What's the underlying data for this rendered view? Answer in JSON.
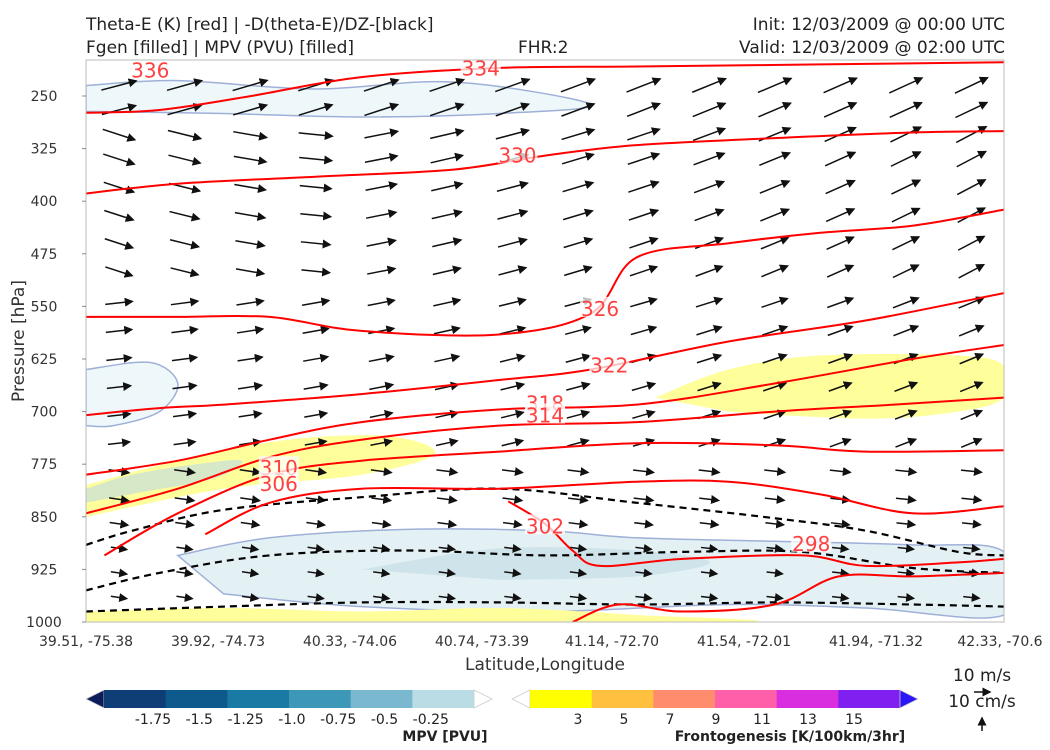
{
  "header": {
    "title_line1": "Theta-E (K) [red] | -D(theta-E)/DZ-[black]",
    "title_line2": "Fgen [filled] | MPV (PVU) [filled]",
    "fhr": "FHR:2",
    "init": "Init: 12/03/2009 @ 00:00 UTC",
    "valid": "Valid: 12/03/2009 @ 02:00 UTC"
  },
  "chart_data": {
    "type": "cross-section",
    "xlabel": "Latitude,Longitude",
    "ylabel": "Pressure [hPa]",
    "x_ticks": [
      "39.51, -75.38",
      "39.92, -74.73",
      "40.33, -74.06",
      "40.74, -73.39",
      "41.14, -72.70",
      "41.54, -72.01",
      "41.94, -71.32",
      "42.33, -70.6"
    ],
    "y_ticks": [
      250,
      325,
      400,
      475,
      550,
      625,
      700,
      775,
      850,
      925,
      1000
    ],
    "ylim": [
      1000,
      200
    ],
    "y_scale": "linear",
    "theta_e_contours": [
      {
        "label": "334",
        "color": "#ff0000",
        "points": [
          [
            0,
            274
          ],
          [
            0.08,
            270
          ],
          [
            0.18,
            250
          ],
          [
            0.3,
            223
          ],
          [
            0.45,
            210
          ],
          [
            0.6,
            208
          ],
          [
            0.8,
            205
          ],
          [
            1,
            202
          ]
        ]
      },
      {
        "label": "330",
        "color": "#ff0000",
        "points": [
          [
            0,
            389
          ],
          [
            0.1,
            375
          ],
          [
            0.25,
            365
          ],
          [
            0.4,
            355
          ],
          [
            0.5,
            335
          ],
          [
            0.6,
            320
          ],
          [
            0.75,
            310
          ],
          [
            0.9,
            302
          ],
          [
            1,
            300
          ]
        ]
      },
      {
        "label": "326",
        "color": "#ff0000",
        "points": [
          [
            0,
            565
          ],
          [
            0.1,
            565
          ],
          [
            0.2,
            565
          ],
          [
            0.3,
            585
          ],
          [
            0.45,
            590
          ],
          [
            0.55,
            560
          ],
          [
            0.6,
            480
          ],
          [
            0.7,
            460
          ],
          [
            0.8,
            445
          ],
          [
            0.9,
            435
          ],
          [
            1,
            412
          ]
        ]
      },
      {
        "label": "322",
        "color": "#ff0000",
        "points": [
          [
            0,
            705
          ],
          [
            0.08,
            695
          ],
          [
            0.15,
            690
          ],
          [
            0.3,
            675
          ],
          [
            0.45,
            655
          ],
          [
            0.55,
            640
          ],
          [
            0.7,
            600
          ],
          [
            0.85,
            570
          ],
          [
            1,
            531
          ]
        ]
      },
      {
        "label": "318",
        "color": "#ff0000",
        "points": [
          [
            0,
            790
          ],
          [
            0.1,
            770
          ],
          [
            0.2,
            740
          ],
          [
            0.3,
            715
          ],
          [
            0.45,
            697
          ],
          [
            0.6,
            690
          ],
          [
            0.75,
            660
          ],
          [
            0.9,
            625
          ],
          [
            1,
            605
          ]
        ]
      },
      {
        "label": "314",
        "color": "#ff0000",
        "points": [
          [
            0,
            845
          ],
          [
            0.1,
            810
          ],
          [
            0.2,
            765
          ],
          [
            0.3,
            740
          ],
          [
            0.45,
            720
          ],
          [
            0.6,
            715
          ],
          [
            0.75,
            700
          ],
          [
            0.88,
            690
          ],
          [
            1,
            680
          ]
        ]
      },
      {
        "label": "310",
        "color": "#ff0000",
        "points": [
          [
            0.02,
            905
          ],
          [
            0.1,
            845
          ],
          [
            0.2,
            790
          ],
          [
            0.3,
            770
          ],
          [
            0.45,
            757
          ],
          [
            0.6,
            745
          ],
          [
            0.75,
            748
          ],
          [
            0.85,
            757
          ],
          [
            1,
            755
          ]
        ]
      },
      {
        "label": "306",
        "color": "#ff0000",
        "points": [
          [
            0.13,
            875
          ],
          [
            0.2,
            830
          ],
          [
            0.3,
            810
          ],
          [
            0.45,
            810
          ],
          [
            0.6,
            800
          ],
          [
            0.7,
            800
          ],
          [
            0.8,
            818
          ],
          [
            0.9,
            845
          ],
          [
            1,
            835
          ]
        ]
      },
      {
        "label": "302",
        "color": "#ff0000",
        "points": [
          [
            0.46,
            828
          ],
          [
            0.5,
            860
          ],
          [
            0.53,
            898
          ],
          [
            0.56,
            920
          ],
          [
            0.65,
            910
          ],
          [
            0.78,
            905
          ],
          [
            0.85,
            920
          ],
          [
            0.95,
            915
          ],
          [
            1,
            910
          ]
        ]
      },
      {
        "label": "298",
        "color": "#ff0000",
        "points": [
          [
            0.53,
            1000
          ],
          [
            0.58,
            975
          ],
          [
            0.65,
            985
          ],
          [
            0.75,
            975
          ],
          [
            0.82,
            935
          ],
          [
            0.9,
            935
          ],
          [
            1,
            930
          ]
        ]
      }
    ],
    "theta_e_label_positions": [
      {
        "label": "336",
        "x": 0.07,
        "p": 215
      },
      {
        "label": "334",
        "x": 0.43,
        "p": 212
      },
      {
        "label": "330",
        "x": 0.47,
        "p": 336
      },
      {
        "label": "326",
        "x": 0.56,
        "p": 555
      },
      {
        "label": "322",
        "x": 0.57,
        "p": 636
      },
      {
        "label": "318",
        "x": 0.5,
        "p": 690
      },
      {
        "label": "314",
        "x": 0.5,
        "p": 707
      },
      {
        "label": "310",
        "x": 0.21,
        "p": 782
      },
      {
        "label": "306",
        "x": 0.21,
        "p": 805
      },
      {
        "label": "302",
        "x": 0.5,
        "p": 865
      },
      {
        "label": "298",
        "x": 0.79,
        "p": 890
      }
    ],
    "stability_dashed_black": [
      {
        "points": [
          [
            0,
            890
          ],
          [
            0.05,
            870
          ],
          [
            0.15,
            840
          ],
          [
            0.3,
            822
          ],
          [
            0.45,
            810
          ],
          [
            0.6,
            830
          ],
          [
            0.75,
            852
          ],
          [
            0.85,
            870
          ],
          [
            0.95,
            900
          ],
          [
            1,
            905
          ]
        ]
      },
      {
        "points": [
          [
            0,
            955
          ],
          [
            0.08,
            930
          ],
          [
            0.2,
            905
          ],
          [
            0.35,
            898
          ],
          [
            0.5,
            905
          ],
          [
            0.65,
            900
          ],
          [
            0.78,
            900
          ],
          [
            0.9,
            923
          ],
          [
            1,
            930
          ]
        ]
      },
      {
        "points": [
          [
            0,
            985
          ],
          [
            0.15,
            978
          ],
          [
            0.3,
            972
          ],
          [
            0.45,
            972
          ],
          [
            0.6,
            975
          ],
          [
            0.75,
            972
          ],
          [
            0.9,
            975
          ],
          [
            1,
            978
          ]
        ]
      }
    ],
    "wind_note": "arrows show along-section wind; scale 10 m/s horizontal, 10 cm/s vertical",
    "mpv_colorbar": {
      "title": "MPV [PVU]",
      "labels": [
        "-1.75",
        "-1.5",
        "-1.25",
        "-1.0",
        "-0.75",
        "-0.5",
        "-0.25"
      ],
      "colors": [
        "#0d1d5c",
        "#0e3e75",
        "#0e5a8c",
        "#1b7aa3",
        "#3d98b8",
        "#7ab8cf",
        "#b9dce5",
        "#ffffff"
      ]
    },
    "fgen_colorbar": {
      "title": "Frontogenesis [K/100km/3hr]",
      "labels": [
        "3",
        "5",
        "7",
        "9",
        "11",
        "13",
        "15"
      ],
      "colors": [
        "#ffffff",
        "#ffff00",
        "#ffc040",
        "#ff8c6c",
        "#ff5fa8",
        "#d82ee0",
        "#7f20f0",
        "#2b16f5"
      ]
    },
    "wind_legend": {
      "horizontal": "10 m/s",
      "vertical": "10 cm/s"
    }
  }
}
